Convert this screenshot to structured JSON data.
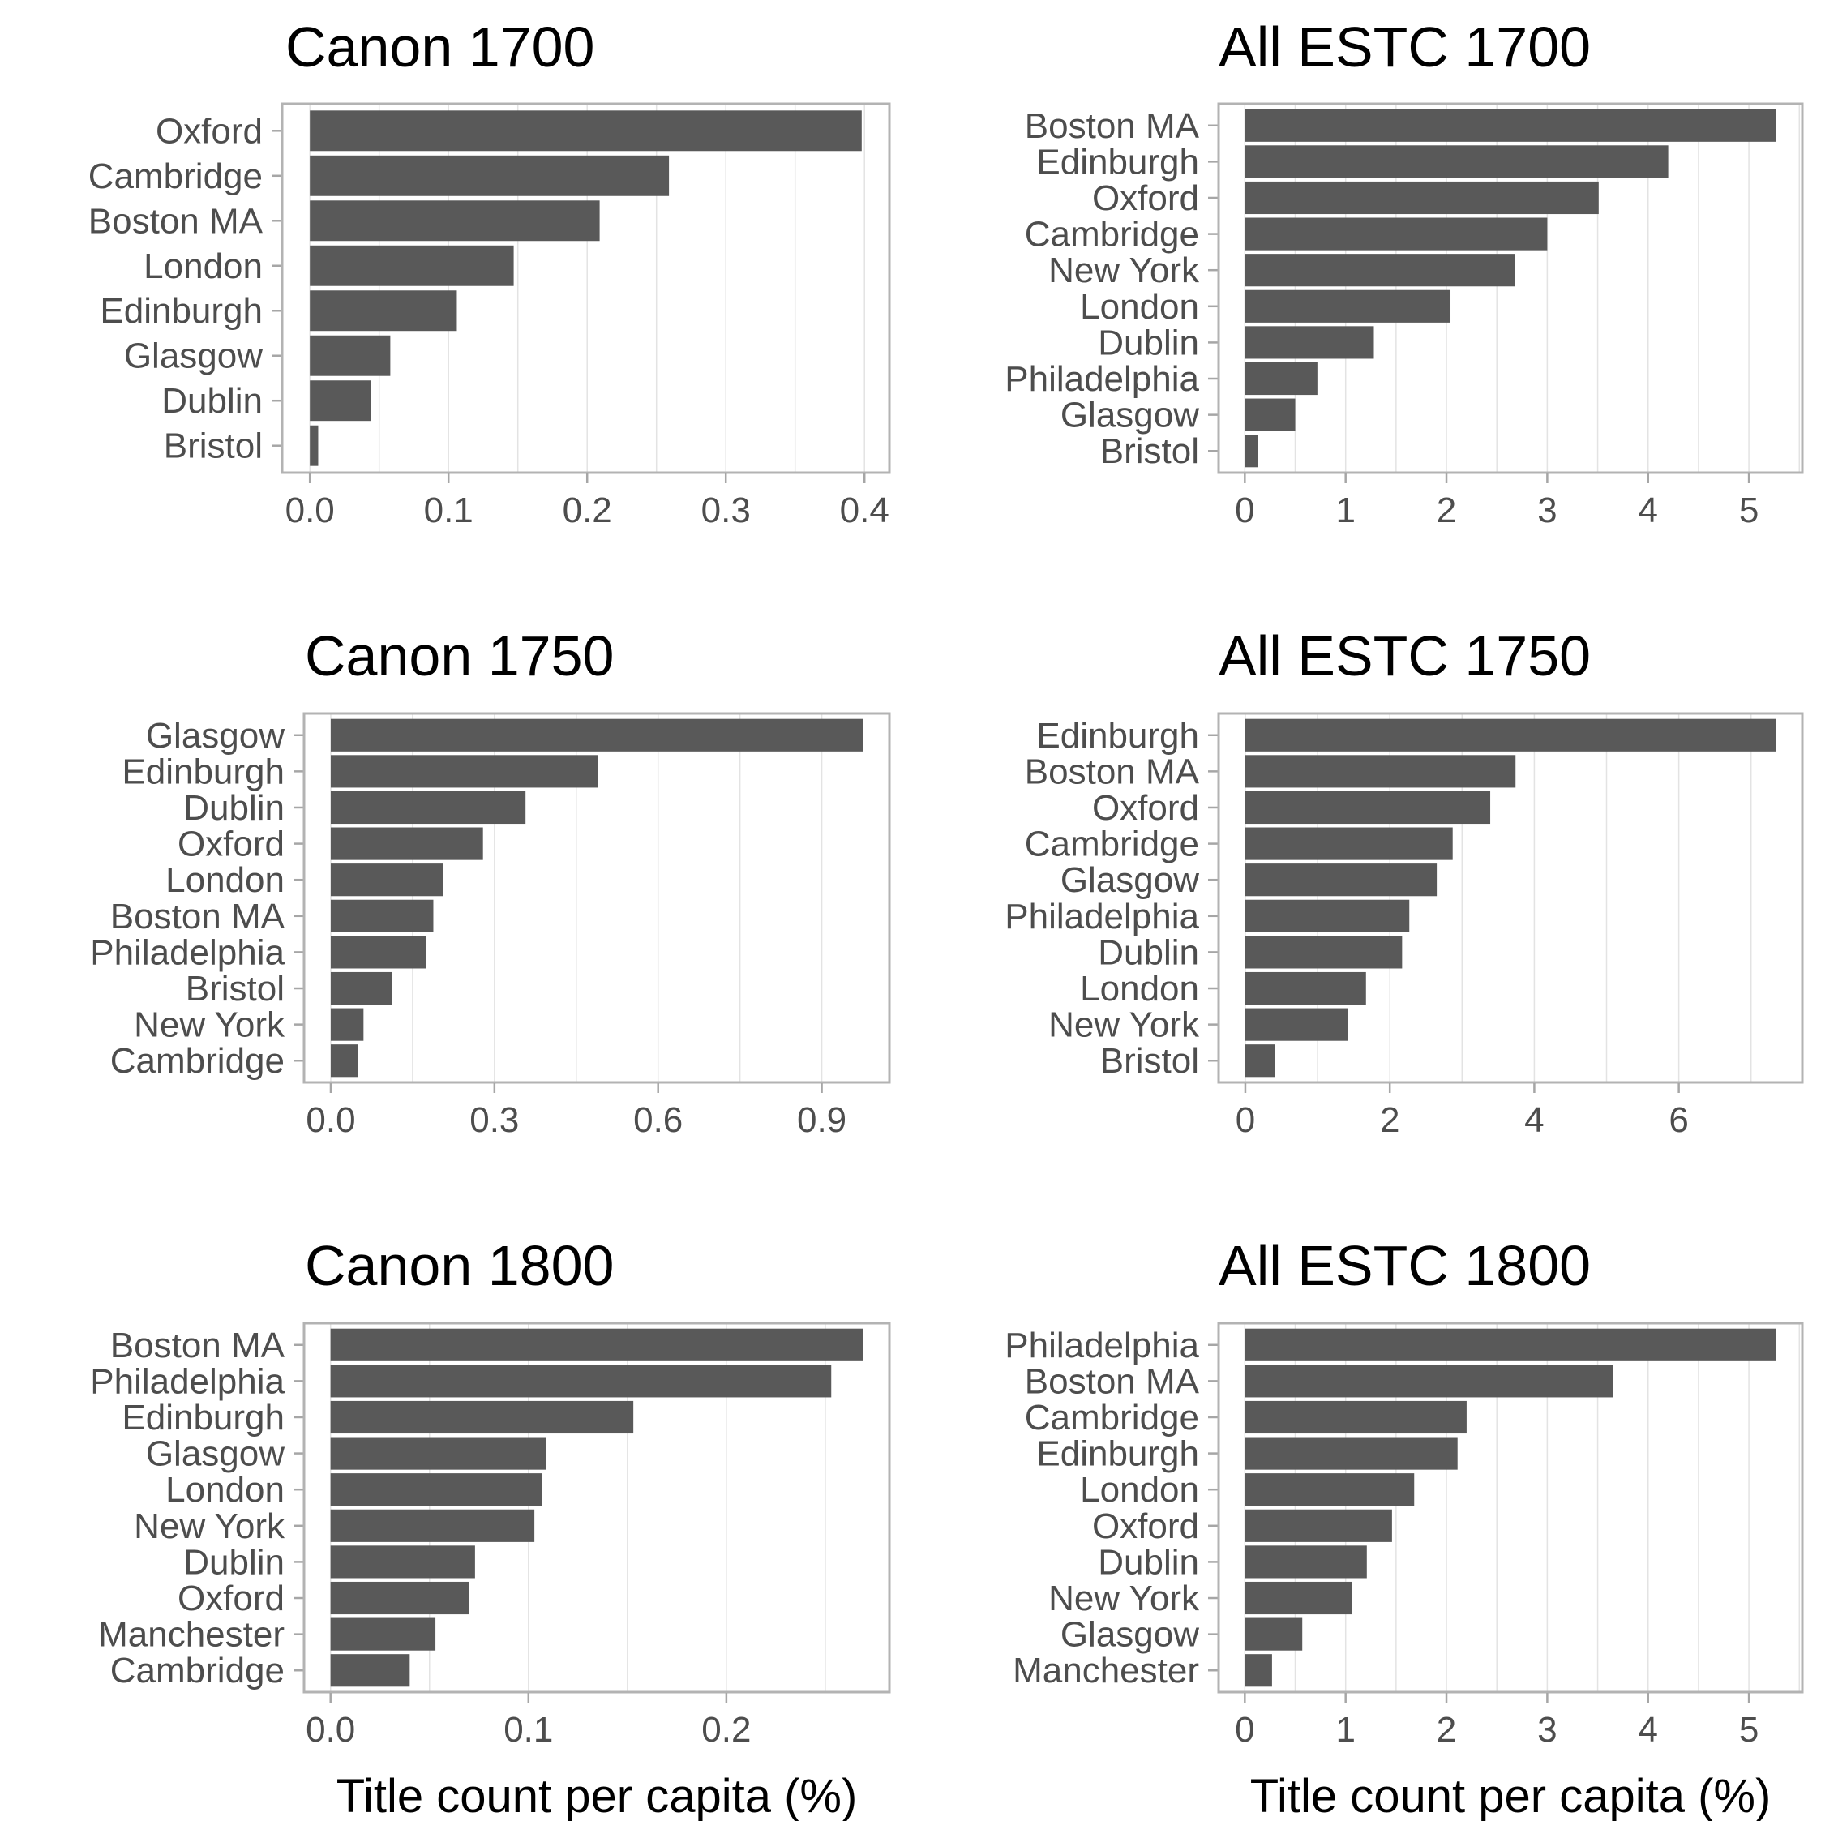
{
  "colors": {
    "bar": "#595959",
    "grid": "#e3e3e3",
    "frame": "#b3b3b3",
    "tick": "#a6a6a6",
    "text": "#4d4d4d"
  },
  "chart_data": [
    {
      "type": "bar",
      "orientation": "horizontal",
      "title": "Canon 1700",
      "categories": [
        "Oxford",
        "Cambridge",
        "Boston MA",
        "London",
        "Edinburgh",
        "Glasgow",
        "Dublin",
        "Bristol"
      ],
      "values": [
        0.398,
        0.259,
        0.209,
        0.147,
        0.106,
        0.058,
        0.044,
        0.006
      ],
      "xlim": [
        -0.02,
        0.418
      ],
      "ticks": [
        0,
        0.1,
        0.2,
        0.3,
        0.4
      ],
      "tick_labels": [
        "0.0",
        "0.1",
        "0.2",
        "0.3",
        "0.4"
      ],
      "xlabel": "",
      "grid": true
    },
    {
      "type": "bar",
      "orientation": "horizontal",
      "title": "All ESTC 1700",
      "categories": [
        "Boston MA",
        "Edinburgh",
        "Oxford",
        "Cambridge",
        "New York",
        "London",
        "Dublin",
        "Philadelphia",
        "Glasgow",
        "Bristol"
      ],
      "values": [
        5.27,
        4.2,
        3.51,
        3.0,
        2.68,
        2.04,
        1.28,
        0.72,
        0.5,
        0.13
      ],
      "xlim": [
        -0.26,
        5.53
      ],
      "ticks": [
        0,
        1,
        2,
        3,
        4,
        5
      ],
      "tick_labels": [
        "0",
        "1",
        "2",
        "3",
        "4",
        "5"
      ],
      "xlabel": "",
      "grid": true
    },
    {
      "type": "bar",
      "orientation": "horizontal",
      "title": "Canon 1750",
      "categories": [
        "Glasgow",
        "Edinburgh",
        "Dublin",
        "Oxford",
        "London",
        "Boston MA",
        "Philadelphia",
        "Bristol",
        "New York",
        "Cambridge"
      ],
      "values": [
        0.975,
        0.49,
        0.357,
        0.279,
        0.206,
        0.188,
        0.174,
        0.112,
        0.06,
        0.05
      ],
      "xlim": [
        -0.049,
        1.024
      ],
      "ticks": [
        0,
        0.3,
        0.6,
        0.9
      ],
      "tick_labels": [
        "0.0",
        "0.3",
        "0.6",
        "0.9"
      ],
      "xlabel": "",
      "grid": true
    },
    {
      "type": "bar",
      "orientation": "horizontal",
      "title": "All ESTC 1750",
      "categories": [
        "Edinburgh",
        "Boston MA",
        "Oxford",
        "Cambridge",
        "Glasgow",
        "Philadelphia",
        "Dublin",
        "London",
        "New York",
        "Bristol"
      ],
      "values": [
        7.34,
        3.74,
        3.39,
        2.87,
        2.65,
        2.27,
        2.17,
        1.67,
        1.42,
        0.41
      ],
      "xlim": [
        -0.37,
        7.71
      ],
      "ticks": [
        0,
        2,
        4,
        6
      ],
      "tick_labels": [
        "0",
        "2",
        "4",
        "6"
      ],
      "xlabel": "",
      "grid": true
    },
    {
      "type": "bar",
      "orientation": "horizontal",
      "title": "Canon 1800",
      "categories": [
        "Boston MA",
        "Philadelphia",
        "Edinburgh",
        "Glasgow",
        "London",
        "New York",
        "Dublin",
        "Oxford",
        "Manchester",
        "Cambridge"
      ],
      "values": [
        0.269,
        0.253,
        0.153,
        0.109,
        0.107,
        0.103,
        0.073,
        0.07,
        0.053,
        0.04
      ],
      "xlim": [
        -0.0134,
        0.2824
      ],
      "ticks": [
        0,
        0.1,
        0.2
      ],
      "tick_labels": [
        "0.0",
        "0.1",
        "0.2"
      ],
      "xlabel": "Title count per capita (%)",
      "grid": true
    },
    {
      "type": "bar",
      "orientation": "horizontal",
      "title": "All ESTC 1800",
      "categories": [
        "Philadelphia",
        "Boston MA",
        "Cambridge",
        "Edinburgh",
        "London",
        "Oxford",
        "Dublin",
        "New York",
        "Glasgow",
        "Manchester"
      ],
      "values": [
        5.27,
        3.65,
        2.2,
        2.11,
        1.68,
        1.46,
        1.21,
        1.06,
        0.57,
        0.27
      ],
      "xlim": [
        -0.26,
        5.53
      ],
      "ticks": [
        0,
        1,
        2,
        3,
        4,
        5
      ],
      "tick_labels": [
        "0",
        "1",
        "2",
        "3",
        "4",
        "5"
      ],
      "xlabel": "Title count per capita (%)",
      "grid": true
    }
  ]
}
